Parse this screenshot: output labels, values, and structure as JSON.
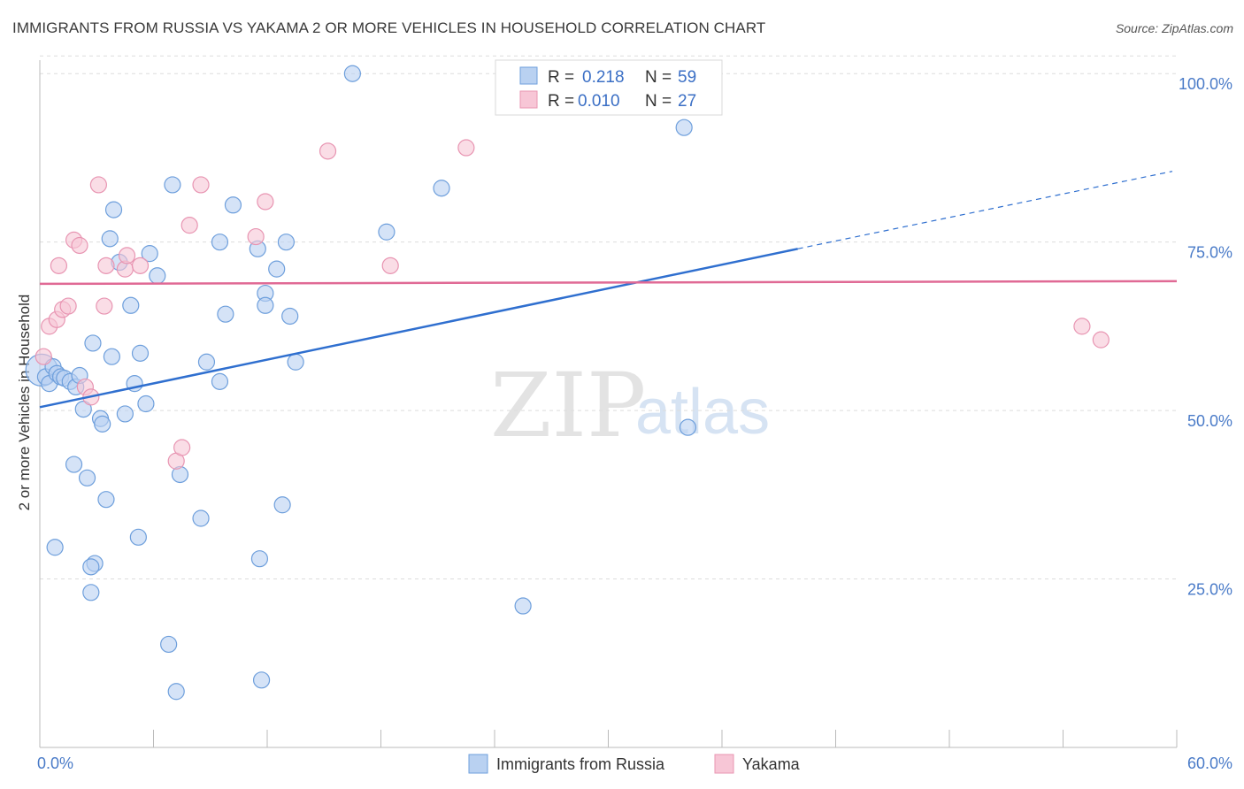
{
  "title": "IMMIGRANTS FROM RUSSIA VS YAKAMA 2 OR MORE VEHICLES IN HOUSEHOLD CORRELATION CHART",
  "source": "Source: ZipAtlas.com",
  "watermark": {
    "zip": "ZIP",
    "atlas": "atlas"
  },
  "colors": {
    "russia_fill": "#b9d1f1",
    "russia_stroke": "#6e9fdc",
    "russia_line": "#2f6fcf",
    "yakama_fill": "#f7c6d6",
    "yakama_stroke": "#e895b2",
    "yakama_line": "#e06a95",
    "grid": "#dddddd",
    "axis": "#bbbbbb"
  },
  "legend": {
    "rows": [
      {
        "r_label": "R =",
        "r_value": "0.218",
        "n_label": "N =",
        "n_value": "59"
      },
      {
        "r_label": "R =",
        "r_value": "0.010",
        "n_label": "N =",
        "n_value": "27"
      }
    ]
  },
  "chart_data": {
    "type": "scatter",
    "title": "IMMIGRANTS FROM RUSSIA VS YAKAMA 2 OR MORE VEHICLES IN HOUSEHOLD CORRELATION CHART",
    "xlabel": "",
    "ylabel": "2 or more Vehicles in Household",
    "xlim": [
      0,
      60
    ],
    "ylim": [
      0,
      102
    ],
    "x_tick_labels": [
      "0.0%",
      "60.0%"
    ],
    "y_ticks": [
      25,
      50,
      75,
      100
    ],
    "y_tick_labels": [
      "25.0%",
      "50.0%",
      "75.0%",
      "100.0%"
    ],
    "grid": true,
    "legend_placement": "top-center",
    "series": [
      {
        "name": "Immigrants from Russia",
        "points": [
          [
            0.1,
            56.0
          ],
          [
            0.3,
            55.0
          ],
          [
            0.5,
            54.0
          ],
          [
            0.7,
            56.5
          ],
          [
            0.9,
            55.5
          ],
          [
            1.1,
            55.0
          ],
          [
            1.3,
            54.8
          ],
          [
            1.6,
            54.3
          ],
          [
            1.9,
            53.5
          ],
          [
            2.3,
            50.2
          ],
          [
            2.1,
            55.2
          ],
          [
            2.8,
            60.0
          ],
          [
            3.2,
            48.8
          ],
          [
            3.8,
            58.0
          ],
          [
            4.5,
            49.5
          ],
          [
            5.0,
            54.0
          ],
          [
            5.3,
            58.5
          ],
          [
            5.6,
            51.0
          ],
          [
            4.8,
            65.6
          ],
          [
            4.2,
            72.0
          ],
          [
            5.8,
            73.3
          ],
          [
            6.2,
            70.0
          ],
          [
            3.7,
            75.5
          ],
          [
            3.9,
            79.8
          ],
          [
            7.0,
            83.5
          ],
          [
            7.4,
            40.5
          ],
          [
            6.8,
            15.3
          ],
          [
            7.2,
            8.3
          ],
          [
            8.5,
            34.0
          ],
          [
            8.8,
            57.2
          ],
          [
            9.5,
            54.3
          ],
          [
            9.8,
            64.3
          ],
          [
            10.2,
            80.5
          ],
          [
            9.5,
            75.0
          ],
          [
            11.5,
            74.0
          ],
          [
            11.9,
            67.4
          ],
          [
            11.9,
            65.6
          ],
          [
            12.5,
            71.0
          ],
          [
            13.0,
            75.0
          ],
          [
            13.2,
            64.0
          ],
          [
            13.5,
            57.2
          ],
          [
            12.8,
            36.0
          ],
          [
            11.6,
            28.0
          ],
          [
            11.7,
            10.0
          ],
          [
            16.5,
            100.0
          ],
          [
            18.3,
            76.5
          ],
          [
            21.2,
            83.0
          ],
          [
            25.5,
            21.0
          ],
          [
            34.0,
            92.0
          ],
          [
            34.2,
            47.5
          ],
          [
            0.8,
            29.7
          ],
          [
            1.8,
            42.0
          ],
          [
            2.5,
            40.0
          ],
          [
            3.5,
            36.8
          ],
          [
            2.9,
            27.3
          ],
          [
            2.7,
            23.0
          ],
          [
            2.7,
            26.8
          ],
          [
            5.2,
            31.2
          ],
          [
            3.3,
            48.0
          ]
        ],
        "trend": {
          "x": [
            0,
            40
          ],
          "y": [
            50.5,
            74.0
          ]
        },
        "trend_extension": {
          "x": [
            40,
            60
          ],
          "y": [
            74.0,
            85.5
          ]
        }
      },
      {
        "name": "Yakama",
        "points": [
          [
            0.2,
            58.0
          ],
          [
            0.5,
            62.5
          ],
          [
            0.9,
            63.5
          ],
          [
            1.0,
            71.5
          ],
          [
            1.2,
            65.0
          ],
          [
            1.5,
            65.5
          ],
          [
            1.8,
            75.3
          ],
          [
            2.1,
            74.5
          ],
          [
            2.4,
            53.5
          ],
          [
            2.7,
            52.0
          ],
          [
            3.1,
            83.5
          ],
          [
            3.4,
            65.5
          ],
          [
            3.5,
            71.5
          ],
          [
            4.5,
            71.0
          ],
          [
            4.6,
            73.0
          ],
          [
            5.3,
            71.5
          ],
          [
            7.2,
            42.5
          ],
          [
            7.5,
            44.5
          ],
          [
            7.9,
            77.5
          ],
          [
            8.5,
            83.5
          ],
          [
            11.4,
            75.8
          ],
          [
            11.9,
            81.0
          ],
          [
            15.2,
            88.5
          ],
          [
            18.5,
            71.5
          ],
          [
            22.5,
            89.0
          ],
          [
            55.0,
            62.5
          ],
          [
            56.0,
            60.5
          ]
        ],
        "trend": {
          "x": [
            0,
            60
          ],
          "y": [
            68.8,
            69.2
          ]
        }
      }
    ]
  }
}
